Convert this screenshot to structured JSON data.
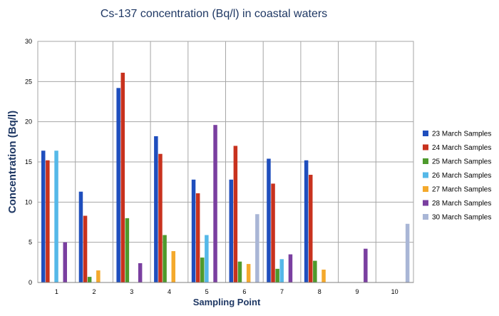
{
  "chart_data": {
    "type": "bar",
    "title": "Cs-137 concentration (Bq/l) in coastal waters",
    "xlabel": "Sampling Point",
    "ylabel": "Concentration (Bq/l)",
    "ylim": [
      0,
      30
    ],
    "yticks": [
      0,
      5,
      10,
      15,
      20,
      25,
      30
    ],
    "grid": true,
    "legend_position": "right",
    "categories": [
      "1",
      "2",
      "3",
      "4",
      "5",
      "6",
      "7",
      "8",
      "9",
      "10"
    ],
    "series": [
      {
        "name": "23 March Samples",
        "color": "#1f4ebd",
        "values": [
          16.4,
          11.3,
          24.2,
          18.2,
          12.8,
          12.8,
          15.4,
          15.2,
          null,
          null
        ]
      },
      {
        "name": "24 March Samples",
        "color": "#c8321e",
        "values": [
          15.2,
          8.3,
          26.1,
          16.0,
          11.1,
          17.0,
          12.3,
          13.4,
          null,
          null
        ]
      },
      {
        "name": "25 March Samples",
        "color": "#4e9a2c",
        "values": [
          null,
          0.7,
          8.0,
          5.9,
          3.1,
          2.6,
          1.7,
          2.7,
          null,
          null
        ]
      },
      {
        "name": "26 March Samples",
        "color": "#55b8e8",
        "values": [
          16.4,
          null,
          null,
          null,
          5.9,
          null,
          2.9,
          null,
          null,
          null
        ]
      },
      {
        "name": "27 March Samples",
        "color": "#f4a92c",
        "values": [
          null,
          1.5,
          null,
          3.9,
          null,
          2.3,
          null,
          1.6,
          null,
          null
        ]
      },
      {
        "name": "28 March Samples",
        "color": "#7a3fa0",
        "values": [
          5.0,
          null,
          2.4,
          null,
          19.6,
          null,
          3.5,
          null,
          4.2,
          null
        ]
      },
      {
        "name": "30 March Samples",
        "color": "#a9b6d6",
        "values": [
          null,
          null,
          null,
          null,
          null,
          8.5,
          null,
          null,
          null,
          7.3
        ]
      }
    ]
  }
}
